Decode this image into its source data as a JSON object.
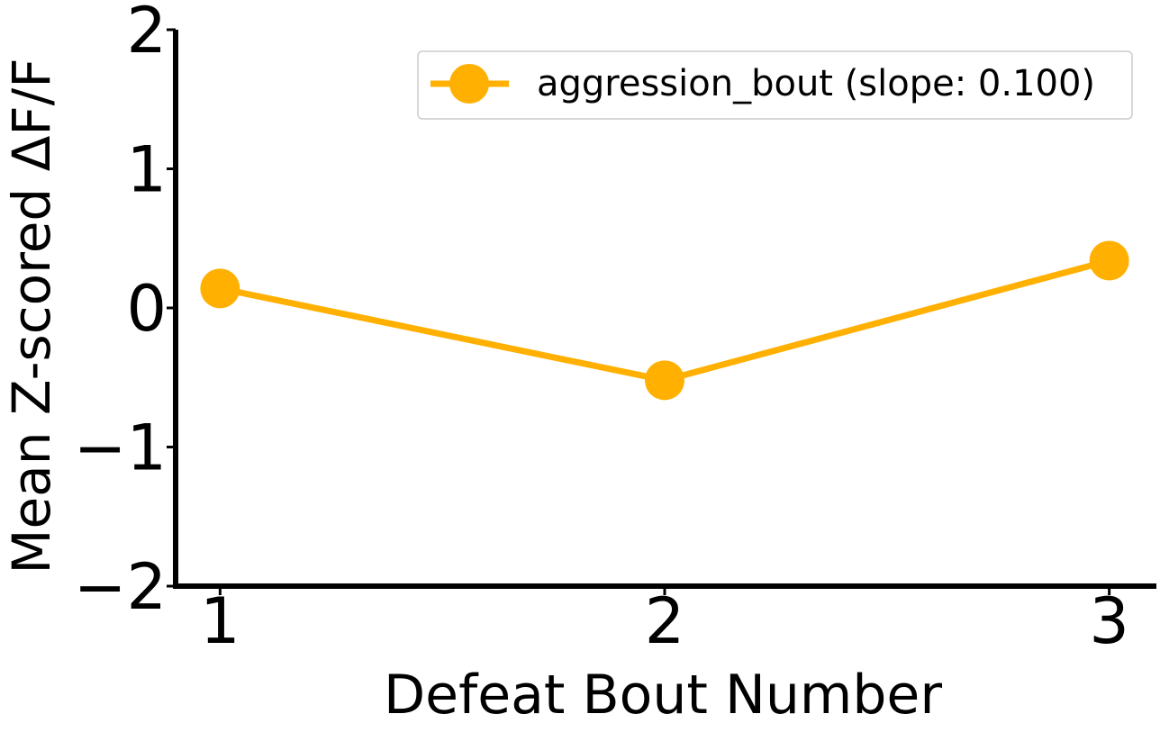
{
  "chart_data": {
    "type": "line",
    "title": "",
    "xlabel": "Defeat Bout Number",
    "ylabel": "Mean Z-scored ΔF/F",
    "x": [
      1,
      2,
      3
    ],
    "xticks": [
      "1",
      "2",
      "3"
    ],
    "yticks": [
      "−2",
      "−1",
      "0",
      "1",
      "2"
    ],
    "xlim": [
      0.9,
      3.1
    ],
    "ylim": [
      -2,
      2
    ],
    "series": [
      {
        "name": "aggression_bout (slope: 0.100)",
        "values": [
          0.14,
          -0.52,
          0.34
        ],
        "color": "#FFB000"
      }
    ],
    "legend": "top-right",
    "grid": false
  }
}
